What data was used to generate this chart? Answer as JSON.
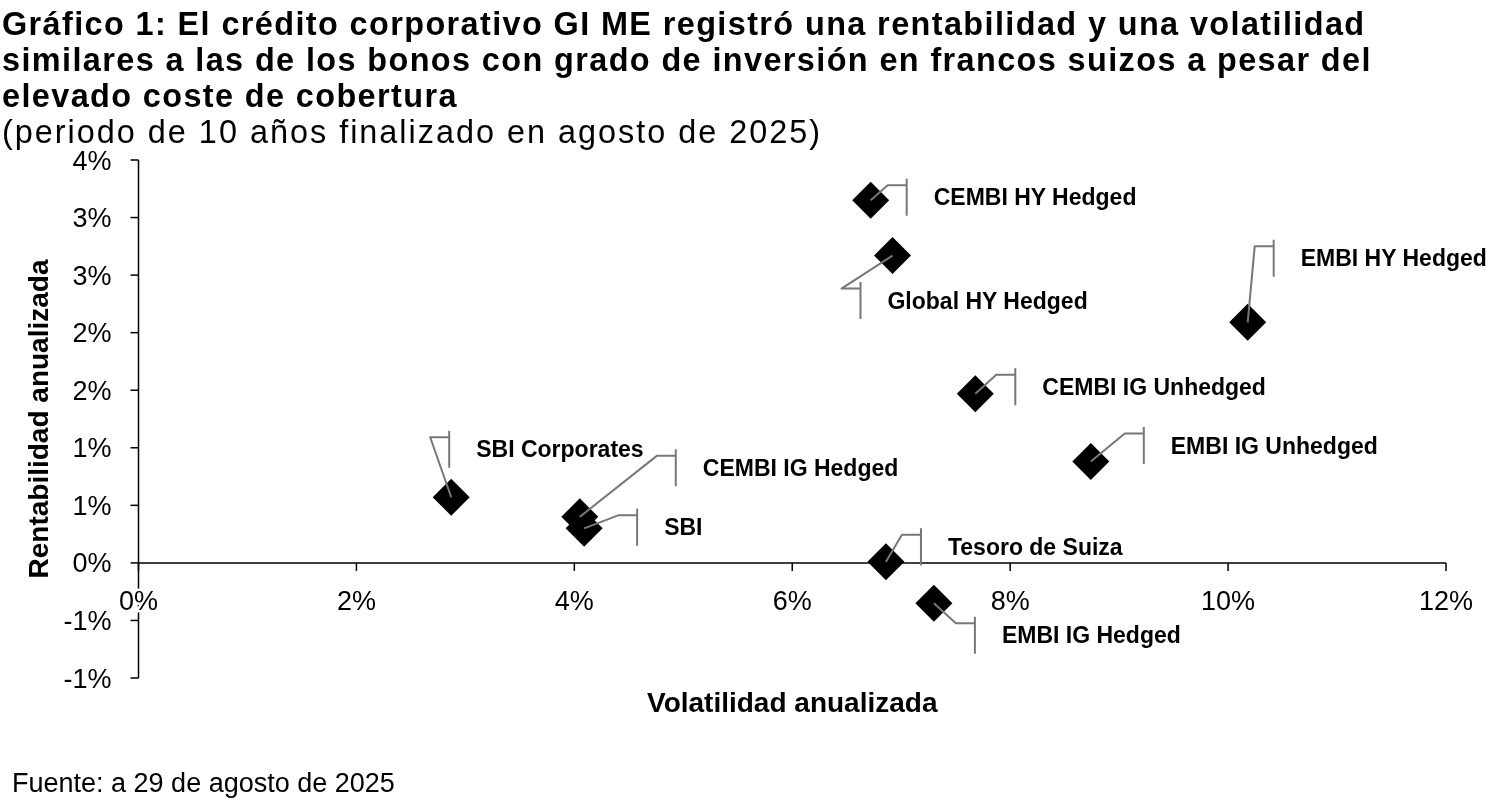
{
  "chart_data": {
    "type": "scatter",
    "title": "Gráfico 1: El crédito corporativo GI ME registró una rentabilidad y una volatilidad similares a las de los bonos con grado de inversión en francos suizos a pesar del elevado coste de cobertura",
    "subtitle": "(periodo de 10 años finalizado en agosto de 2025)",
    "xlabel": "Volatilidad anualizada",
    "ylabel": "Rentabilidad anualizada",
    "annotations": [
      "Fuente: a 29 de agosto de 2025"
    ],
    "marker": "diamond",
    "xlim": [
      0,
      12
    ],
    "xticks": [
      {
        "value": 0,
        "label": "0%"
      },
      {
        "value": 2,
        "label": "2%"
      },
      {
        "value": 4,
        "label": "4%"
      },
      {
        "value": 6,
        "label": "6%"
      },
      {
        "value": 8,
        "label": "8%"
      },
      {
        "value": 10,
        "label": "10%"
      },
      {
        "value": 12,
        "label": "12%"
      }
    ],
    "ylim": [
      -1,
      3.5
    ],
    "yticks": [
      {
        "value": -1,
        "label": "-1%"
      },
      {
        "value": -0.5,
        "label": "-1%"
      },
      {
        "value": 0,
        "label": "0%"
      },
      {
        "value": 0.5,
        "label": "1%"
      },
      {
        "value": 1,
        "label": "1%"
      },
      {
        "value": 1.5,
        "label": "2%"
      },
      {
        "value": 2,
        "label": "2%"
      },
      {
        "value": 2.5,
        "label": "3%"
      },
      {
        "value": 3,
        "label": "3%"
      },
      {
        "value": 3.5,
        "label": "4%"
      }
    ],
    "series": [
      {
        "name": "SBI Corporates",
        "color": "#000000",
        "x": [
          2.87
        ],
        "values": [
          0.57
        ]
      },
      {
        "name": "CEMBI IG Hedged",
        "color": "#000000",
        "x": [
          4.05
        ],
        "values": [
          0.4
        ]
      },
      {
        "name": "SBI",
        "color": "#000000",
        "x": [
          4.09
        ],
        "values": [
          0.3
        ]
      },
      {
        "name": "CEMBI HY Hedged",
        "color": "#000000",
        "x": [
          6.72
        ],
        "values": [
          3.15
        ]
      },
      {
        "name": "Global HY Hedged",
        "color": "#000000",
        "x": [
          6.92
        ],
        "values": [
          2.67
        ]
      },
      {
        "name": "CEMBI IG Unhedged",
        "color": "#000000",
        "x": [
          7.68
        ],
        "values": [
          1.47
        ]
      },
      {
        "name": "EMBI IG Unhedged",
        "color": "#000000",
        "x": [
          8.74
        ],
        "values": [
          0.88
        ]
      },
      {
        "name": "EMBI HY Hedged",
        "color": "#000000",
        "x": [
          10.18
        ],
        "values": [
          2.09
        ]
      },
      {
        "name": "Tesoro de Suiza",
        "color": "#000000",
        "x": [
          6.86
        ],
        "values": [
          0.01
        ]
      },
      {
        "name": "EMBI IG Hedged",
        "color": "#000000",
        "x": [
          7.3
        ],
        "values": [
          -0.35
        ]
      }
    ]
  }
}
